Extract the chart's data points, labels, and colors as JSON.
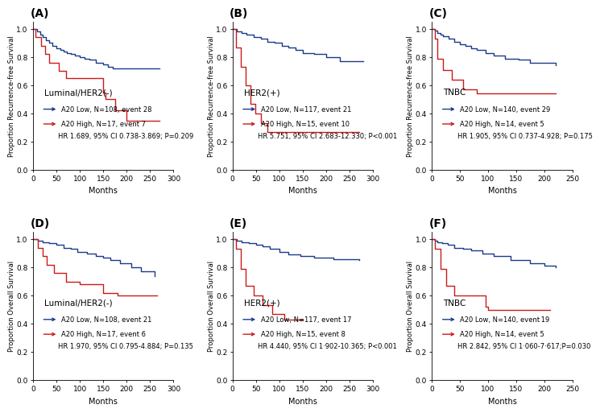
{
  "panels": [
    {
      "label": "(A)",
      "subtitle": "Luminal/HER2(-)",
      "ylabel": "Proportion Recurrence-free Survival",
      "xlabel": "Months",
      "xlim": [
        0,
        300
      ],
      "xticks": [
        0,
        50,
        100,
        150,
        200,
        250,
        300
      ],
      "legend_texts": [
        "A20 Low, N=108, event 28",
        "A20 High, N=17, event 7",
        "HR 1.689, 95% CI 0.738-3.869; P=0.209"
      ],
      "blue_x": [
        0,
        8,
        15,
        20,
        28,
        35,
        42,
        50,
        58,
        65,
        72,
        80,
        90,
        100,
        110,
        120,
        135,
        150,
        160,
        170,
        270
      ],
      "blue_y": [
        1.0,
        0.98,
        0.96,
        0.94,
        0.92,
        0.9,
        0.88,
        0.86,
        0.85,
        0.84,
        0.83,
        0.82,
        0.81,
        0.8,
        0.79,
        0.78,
        0.76,
        0.75,
        0.73,
        0.72,
        0.72
      ],
      "red_x": [
        0,
        5,
        18,
        25,
        35,
        55,
        70,
        150,
        155,
        175,
        200,
        270
      ],
      "red_y": [
        1.0,
        0.94,
        0.88,
        0.82,
        0.76,
        0.7,
        0.65,
        0.55,
        0.5,
        0.42,
        0.35,
        0.35
      ]
    },
    {
      "label": "(B)",
      "subtitle": "HER2(+)",
      "ylabel": "Proportion Recurrence-free Survival",
      "xlabel": "Months",
      "xlim": [
        0,
        300
      ],
      "xticks": [
        0,
        50,
        100,
        150,
        200,
        250,
        300
      ],
      "legend_texts": [
        "A20 Low, N=117, event 21",
        "A20 High, N=15, event 10",
        "HR 5.751, 95% CI 2.683-12.330; P<0.001"
      ],
      "blue_x": [
        0,
        10,
        20,
        30,
        45,
        60,
        75,
        90,
        105,
        120,
        135,
        150,
        175,
        200,
        230,
        280
      ],
      "blue_y": [
        1.0,
        0.98,
        0.97,
        0.96,
        0.94,
        0.93,
        0.91,
        0.9,
        0.88,
        0.87,
        0.85,
        0.83,
        0.82,
        0.8,
        0.77,
        0.77
      ],
      "red_x": [
        0,
        8,
        18,
        28,
        38,
        48,
        60,
        75,
        90,
        110,
        130,
        270
      ],
      "red_y": [
        1.0,
        0.87,
        0.73,
        0.6,
        0.47,
        0.4,
        0.33,
        0.27,
        0.27,
        0.27,
        0.27,
        0.27
      ]
    },
    {
      "label": "(C)",
      "subtitle": "TNBC",
      "ylabel": "Proportion Recurrence-free Survival",
      "xlabel": "Months",
      "xlim": [
        0,
        250
      ],
      "xticks": [
        0,
        50,
        100,
        150,
        200,
        250
      ],
      "legend_texts": [
        "A20 Low, N=140, event 29",
        "A20 High, N=14, event 5",
        "HR 1.905, 95% CI 0.737-4.928; P=0.175"
      ],
      "blue_x": [
        0,
        5,
        10,
        15,
        20,
        30,
        40,
        50,
        60,
        70,
        80,
        95,
        110,
        130,
        155,
        175,
        220
      ],
      "blue_y": [
        1.0,
        0.99,
        0.97,
        0.96,
        0.95,
        0.93,
        0.91,
        0.89,
        0.88,
        0.86,
        0.85,
        0.83,
        0.81,
        0.79,
        0.78,
        0.76,
        0.74
      ],
      "red_x": [
        0,
        5,
        10,
        20,
        35,
        55,
        80,
        220
      ],
      "red_y": [
        1.0,
        0.93,
        0.79,
        0.71,
        0.64,
        0.57,
        0.54,
        0.54
      ]
    },
    {
      "label": "(D)",
      "subtitle": "Luminal/HER2(-)",
      "ylabel": "Proportion Overall Survival",
      "xlabel": "Months",
      "xlim": [
        0,
        300
      ],
      "xticks": [
        0,
        50,
        100,
        150,
        200,
        250,
        300
      ],
      "legend_texts": [
        "A20 Low, N=108, event 21",
        "A20 High, N=17, event 6",
        "HR 1.970, 95% CI 0.795-4.884; P=0.135"
      ],
      "blue_x": [
        0,
        10,
        20,
        35,
        50,
        65,
        80,
        95,
        115,
        135,
        150,
        165,
        185,
        210,
        230,
        260
      ],
      "blue_y": [
        1.0,
        0.99,
        0.98,
        0.97,
        0.96,
        0.94,
        0.93,
        0.91,
        0.9,
        0.88,
        0.87,
        0.85,
        0.83,
        0.8,
        0.77,
        0.74
      ],
      "red_x": [
        0,
        10,
        20,
        30,
        45,
        70,
        100,
        150,
        180,
        265
      ],
      "red_y": [
        1.0,
        0.94,
        0.88,
        0.82,
        0.76,
        0.7,
        0.68,
        0.62,
        0.6,
        0.6
      ]
    },
    {
      "label": "(E)",
      "subtitle": "HER2(+)",
      "ylabel": "Proportion Overall Survival",
      "xlabel": "Months",
      "xlim": [
        0,
        300
      ],
      "xticks": [
        0,
        50,
        100,
        150,
        200,
        250,
        300
      ],
      "legend_texts": [
        "A20 Low, N=117, event 17",
        "A20 High, N=15, event 8",
        "HR 4.440, 95% CI 1·902-10.365; P<0.001"
      ],
      "blue_x": [
        0,
        10,
        20,
        35,
        50,
        65,
        80,
        100,
        120,
        145,
        175,
        215,
        270
      ],
      "blue_y": [
        1.0,
        0.99,
        0.98,
        0.97,
        0.96,
        0.95,
        0.93,
        0.91,
        0.89,
        0.88,
        0.87,
        0.86,
        0.85
      ],
      "red_x": [
        0,
        8,
        18,
        28,
        45,
        65,
        85,
        110,
        150
      ],
      "red_y": [
        1.0,
        0.93,
        0.79,
        0.67,
        0.6,
        0.53,
        0.47,
        0.43,
        0.43
      ]
    },
    {
      "label": "(F)",
      "subtitle": "TNBC",
      "ylabel": "Proportion Overall Survival",
      "xlabel": "Months",
      "xlim": [
        0,
        250
      ],
      "xticks": [
        0,
        50,
        100,
        150,
        200,
        250
      ],
      "legend_texts": [
        "A20 Low, N=140, event 19",
        "A20 High, N=14, event 5",
        "HR 2.842, 95% CI 1·060-7·617;P=0.030"
      ],
      "blue_x": [
        0,
        5,
        10,
        18,
        28,
        40,
        55,
        70,
        90,
        110,
        140,
        175,
        200,
        220
      ],
      "blue_y": [
        1.0,
        0.99,
        0.98,
        0.97,
        0.96,
        0.94,
        0.93,
        0.92,
        0.9,
        0.88,
        0.85,
        0.83,
        0.81,
        0.8
      ],
      "red_x": [
        0,
        5,
        15,
        25,
        40,
        95,
        100,
        210
      ],
      "red_y": [
        1.0,
        0.93,
        0.79,
        0.67,
        0.6,
        0.52,
        0.5,
        0.5
      ]
    }
  ],
  "blue_color": "#1A3A8C",
  "red_color": "#CC1A1A",
  "linewidth": 1.0,
  "fontsize_ylabel": 6.0,
  "fontsize_xlabel": 7.0,
  "fontsize_tick": 6.5,
  "fontsize_legend": 6.0,
  "fontsize_subtitle": 7.5,
  "fontsize_panel_label": 10
}
